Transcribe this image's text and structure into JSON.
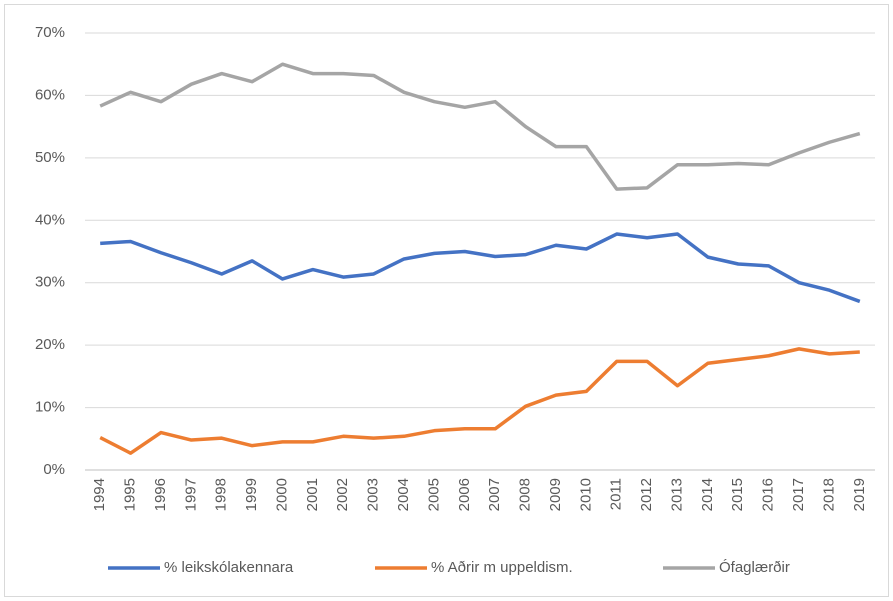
{
  "chart_data": {
    "type": "line",
    "categories": [
      "1994",
      "1995",
      "1996",
      "1997",
      "1998",
      "1999",
      "2000",
      "2001",
      "2002",
      "2003",
      "2004",
      "2005",
      "2006",
      "2007",
      "2008",
      "2009",
      "2010",
      "2011",
      "2012",
      "2013",
      "2014",
      "2015",
      "2016",
      "2017",
      "2018",
      "2019"
    ],
    "series": [
      {
        "name": "% leikskólakennara",
        "color": "#4472c4",
        "values": [
          36.3,
          36.6,
          34.8,
          33.2,
          31.4,
          33.5,
          30.6,
          32.1,
          30.9,
          31.4,
          33.8,
          34.7,
          35,
          34.2,
          34.5,
          36,
          35.4,
          37.8,
          37.2,
          37.8,
          34.1,
          33,
          32.7,
          30,
          28.8,
          27
        ]
      },
      {
        "name": "% Aðrir m uppeldism.",
        "color": "#ed7d31",
        "values": [
          5.2,
          2.7,
          6,
          4.8,
          5.1,
          3.9,
          4.5,
          4.5,
          5.4,
          5.1,
          5.4,
          6.3,
          6.6,
          6.6,
          10.2,
          12,
          12.6,
          17.4,
          17.4,
          13.5,
          17.1,
          17.7,
          18.3,
          19.4,
          18.6,
          18.9
        ]
      },
      {
        "name": "Ófaglærðir",
        "color": "#a5a5a5",
        "values": [
          58.3,
          60.5,
          59,
          61.8,
          63.5,
          62.2,
          65,
          63.5,
          63.5,
          63.2,
          60.5,
          59,
          58.1,
          59,
          55,
          51.8,
          51.8,
          45,
          45.2,
          48.9,
          48.9,
          49.1,
          48.9,
          50.8,
          52.5,
          53.9
        ]
      }
    ],
    "ylim": [
      0,
      70
    ],
    "yticks": [
      {
        "value": 0,
        "label": "0%"
      },
      {
        "value": 10,
        "label": "10%"
      },
      {
        "value": 20,
        "label": "20%"
      },
      {
        "value": 30,
        "label": "30%"
      },
      {
        "value": 40,
        "label": "40%"
      },
      {
        "value": 50,
        "label": "50%"
      },
      {
        "value": 60,
        "label": "60%"
      },
      {
        "value": 70,
        "label": "70%"
      }
    ],
    "grid": true,
    "legend": "bottom"
  }
}
